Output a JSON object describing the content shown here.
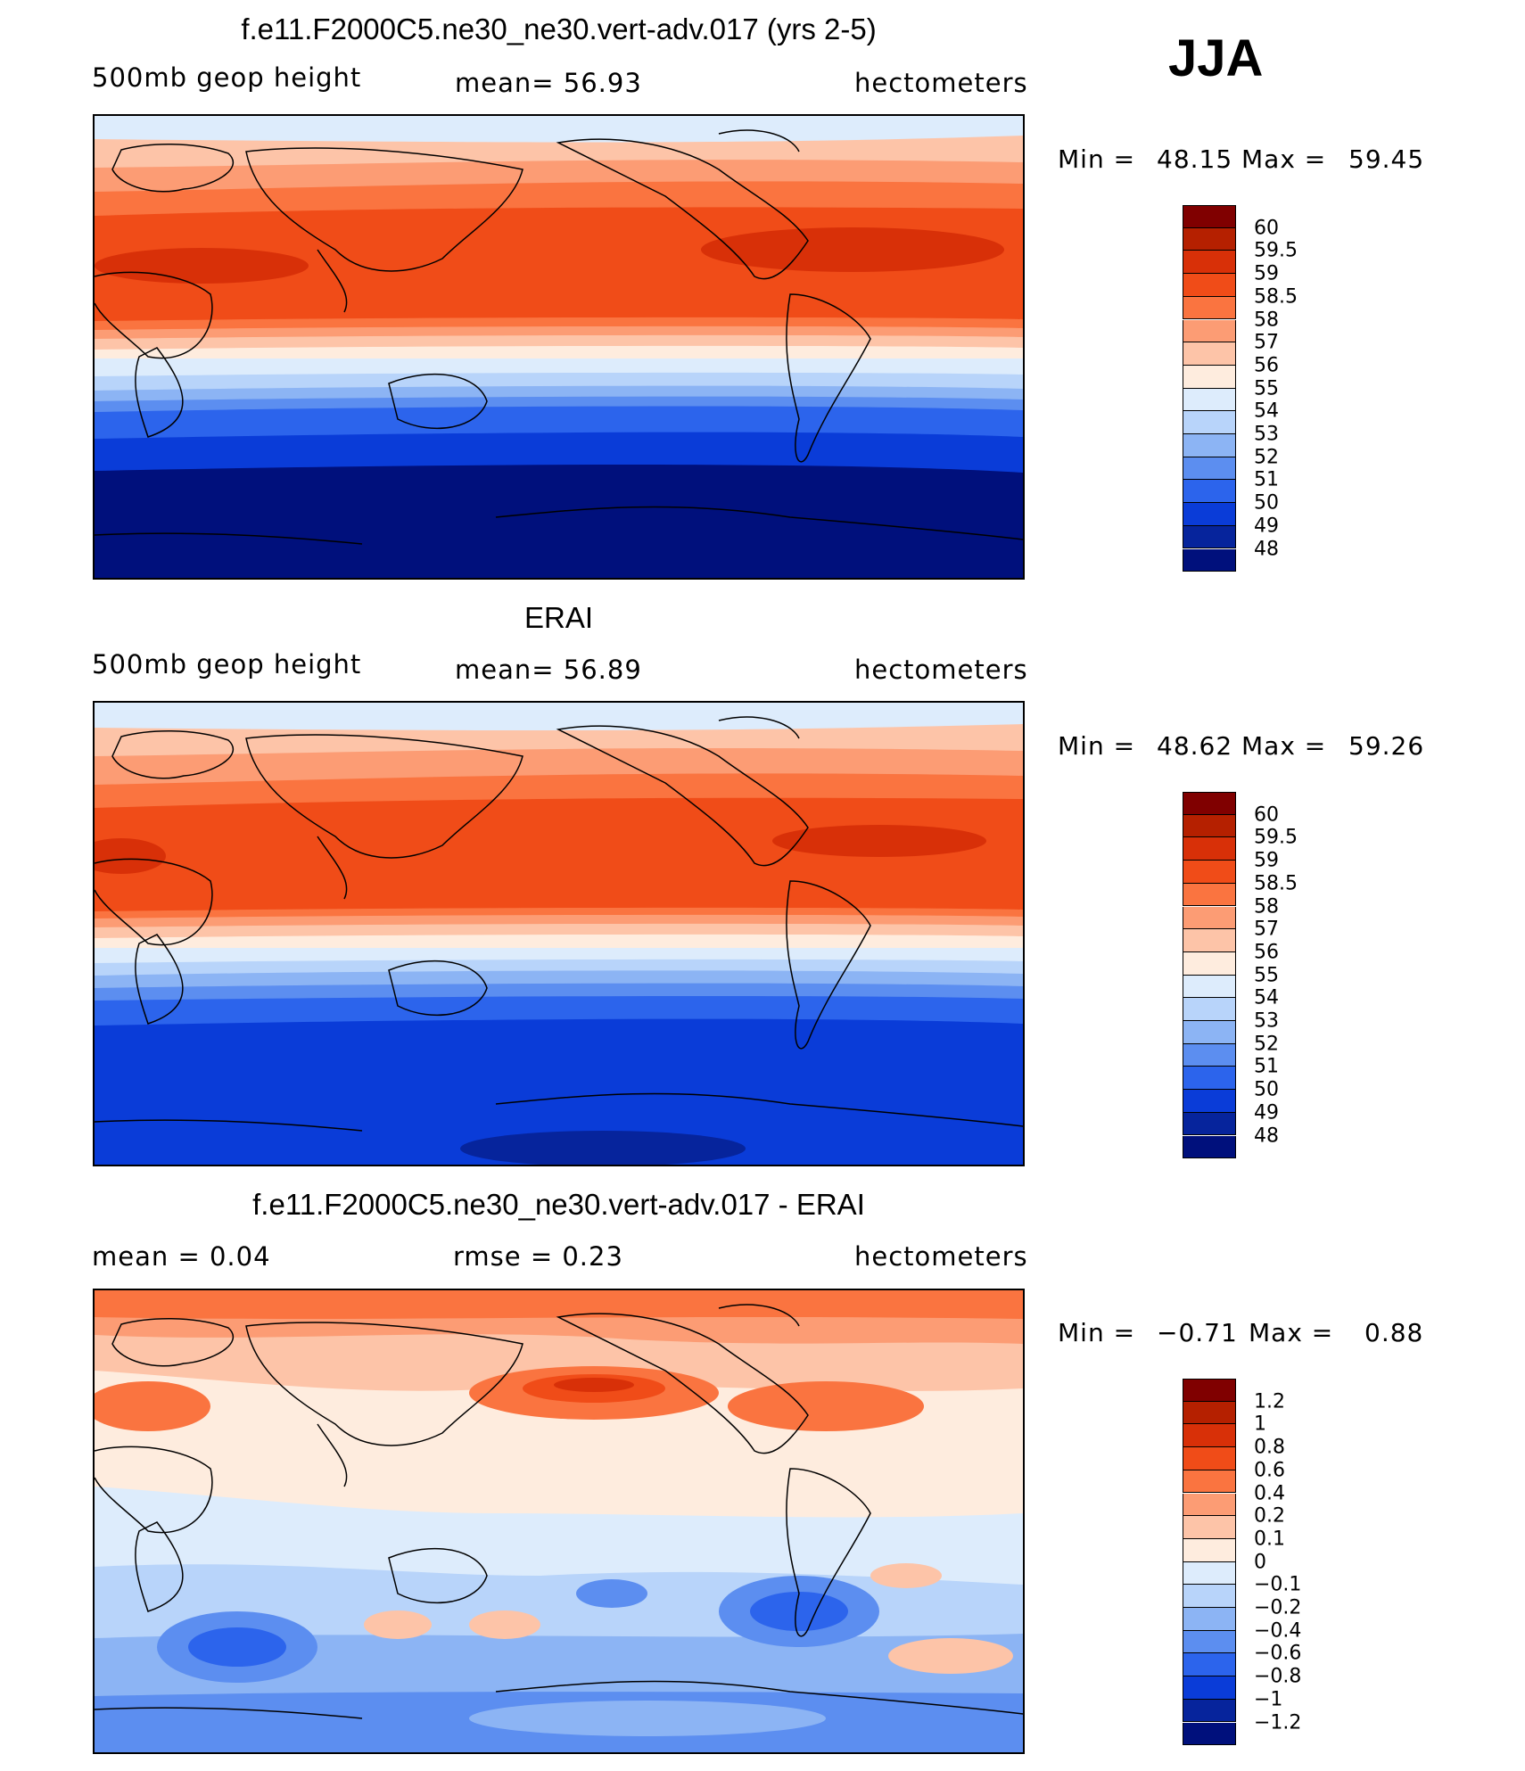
{
  "season": "JJA",
  "panels": [
    {
      "title": "f.e11.F2000C5.ne30_ne30.vert-adv.017 (yrs 2-5)",
      "left_label": "500mb  geop  height",
      "center_label": "mean=   56.93",
      "units": "hectometers",
      "min_label": "Min  =",
      "min": "48.15",
      "max_label": "Max  =",
      "max": "59.45",
      "colorbar_labels": [
        "60",
        "59.5",
        "59",
        "58.5",
        "58",
        "57",
        "56",
        "55",
        "54",
        "53",
        "52",
        "51",
        "50",
        "49",
        "48"
      ]
    },
    {
      "title": "ERAI",
      "left_label": "500mb  geop  height",
      "center_label": "mean=   56.89",
      "units": "hectometers",
      "min_label": "Min  =",
      "min": "48.62",
      "max_label": "Max  =",
      "max": "59.26",
      "colorbar_labels": [
        "60",
        "59.5",
        "59",
        "58.5",
        "58",
        "57",
        "56",
        "55",
        "54",
        "53",
        "52",
        "51",
        "50",
        "49",
        "48"
      ]
    },
    {
      "title": "f.e11.F2000C5.ne30_ne30.vert-adv.017 - ERAI",
      "left_label": "mean  =      0.04",
      "center_label": "rmse  =      0.23",
      "units": "hectometers",
      "min_label": "Min  =",
      "min": "−0.71",
      "max_label": "Max  =",
      "max": "0.88",
      "colorbar_labels": [
        "1.2",
        "1",
        "0.8",
        "0.6",
        "0.4",
        "0.2",
        "0.1",
        "0",
        "−0.1",
        "−0.2",
        "−0.4",
        "−0.6",
        "−0.8",
        "−1",
        "−1.2"
      ]
    }
  ],
  "colormap": [
    "#800000",
    "#b52000",
    "#d83008",
    "#f04c18",
    "#fa7440",
    "#fc9c74",
    "#fdc4a8",
    "#feecde",
    "#ddecfc",
    "#b8d4fa",
    "#8cb4f4",
    "#5c8ef0",
    "#2c64ec",
    "#0a3cd8",
    "#06249c",
    "#00107c"
  ]
}
